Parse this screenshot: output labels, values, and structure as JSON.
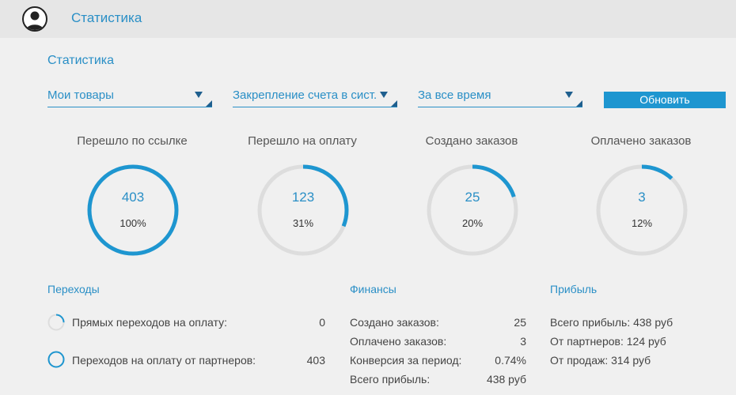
{
  "header": {
    "title": "Статистика"
  },
  "page": {
    "title": "Статистика"
  },
  "filters": {
    "products": "Мои товары",
    "method": "Закрепление счета в сист.",
    "period": "За все время",
    "refresh_label": "Обновить"
  },
  "stats": [
    {
      "label": "Перешло по ссылке",
      "value": "403",
      "percent_text": "100%",
      "fraction": 1.0
    },
    {
      "label": "Перешло на оплату",
      "value": "123",
      "percent_text": "31%",
      "fraction": 0.31
    },
    {
      "label": "Создано заказов",
      "value": "25",
      "percent_text": "20%",
      "fraction": 0.2
    },
    {
      "label": "Оплачено заказов",
      "value": "3",
      "percent_text": "12%",
      "fraction": 0.12
    }
  ],
  "transitions": {
    "title": "Переходы",
    "rows": [
      {
        "label": "Прямых переходов на оплату:",
        "value": "0",
        "fraction": 0.0
      },
      {
        "label": "Переходов на оплату от партнеров:",
        "value": "403",
        "fraction": 1.0
      }
    ]
  },
  "finance": {
    "title": "Финансы",
    "rows": [
      {
        "label": "Создано заказов:",
        "value": "25"
      },
      {
        "label": "Оплачено заказов:",
        "value": "3"
      },
      {
        "label": "Конверсия за период:",
        "value": "0.74%"
      },
      {
        "label": "Всего прибыль:",
        "value": "438 руб"
      }
    ]
  },
  "profit": {
    "title": "Прибыль",
    "rows": [
      {
        "text": "Всего прибыль: 438 руб"
      },
      {
        "text": "От партнеров: 124 руб"
      },
      {
        "text": "От продаж: 314 руб"
      }
    ]
  },
  "colors": {
    "accent": "#1e96d0",
    "ring_track": "#dddddd",
    "text_blue": "#2a8fc6"
  }
}
